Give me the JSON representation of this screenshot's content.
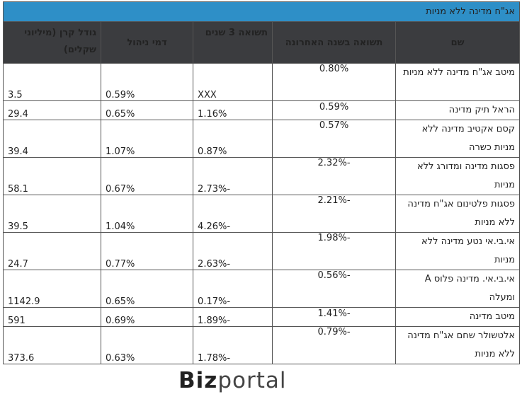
{
  "table": {
    "title": "אג\"ח מדינה ללא מניות",
    "headers": {
      "name": "שם",
      "last_year": "תשואה בשנה האחרונה",
      "return_3y": "תשואה 3 שנים",
      "fee": "דמי ניהול",
      "size": "גודל קרן (מיליוני שקלים)"
    },
    "rows": [
      {
        "name": "מיטב אג\"ח מדינה ללא מניות",
        "last_year": "0.80%",
        "return_3y": "XXX",
        "fee": "0.59%",
        "size": "3.5"
      },
      {
        "name": "הראל תיק מדינה",
        "last_year": "0.59%",
        "return_3y": "1.16%",
        "fee": "0.65%",
        "size": "29.4"
      },
      {
        "name": "קסם אקטיב מדינה ללא מניות כשרה",
        "last_year": "0.57%",
        "return_3y": "0.87%",
        "fee": "1.07%",
        "size": "39.4"
      },
      {
        "name": "פסגות מדינה ומדורג ללא מניות",
        "last_year": "-2.32%",
        "return_3y": "-2.73%",
        "fee": "0.67%",
        "size": "58.1"
      },
      {
        "name": "פסגות פלטינום אג\"ח מדינה ללא מניות",
        "last_year": "-2.21%",
        "return_3y": "-4.26%",
        "fee": "1.04%",
        "size": "39.5"
      },
      {
        "name": "אי.בי.אי נטע מדינה ללא מניות",
        "last_year": "-1.98%",
        "return_3y": "-2.63%",
        "fee": "0.77%",
        "size": "24.7"
      },
      {
        "name": "אי.בי.אי. מדינה פלוס A ומעלה",
        "last_year": "-0.56%",
        "return_3y": "-0.17%",
        "fee": "0.65%",
        "size": "1142.9"
      },
      {
        "name": "מיטב מדינה",
        "last_year": "-1.41%",
        "return_3y": "-1.89%",
        "fee": "0.69%",
        "size": "591"
      },
      {
        "name": "אלטשולר שחם אג\"ח מדינה ללא מניות",
        "last_year": "-0.79%",
        "return_3y": "-1.78%",
        "fee": "0.63%",
        "size": "373.6"
      }
    ]
  },
  "logo": {
    "bold": "Biz",
    "light": "portal"
  }
}
